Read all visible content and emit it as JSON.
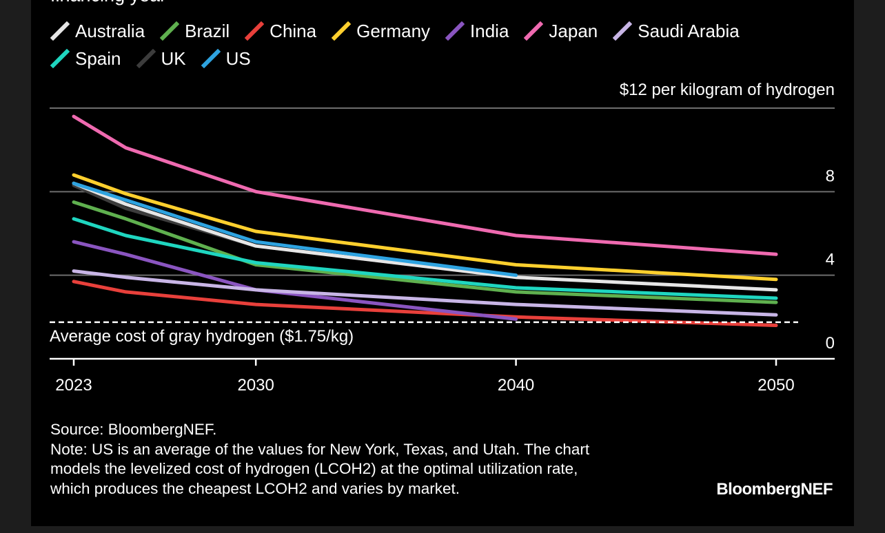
{
  "header": {
    "subtitle_partial": "financing year"
  },
  "chart_data": {
    "type": "line",
    "x": [
      2023,
      2025,
      2030,
      2040,
      2050
    ],
    "xticks": [
      "2023",
      "2030",
      "2040",
      "2050"
    ],
    "yticks": [
      "0",
      "4",
      "8"
    ],
    "top_label": "$12 per kilogram of hydrogen",
    "ylim": [
      0,
      12
    ],
    "grid": true,
    "legend_position": "top",
    "reference_line": {
      "value": 1.75,
      "label": "Average cost of gray hydrogen ($1.75/kg)"
    },
    "series": [
      {
        "name": "Australia",
        "color": "#e6e6e6",
        "values": [
          8.4,
          7.4,
          5.4,
          3.9,
          3.3
        ]
      },
      {
        "name": "Brazil",
        "color": "#5fb04f",
        "values": [
          7.5,
          6.7,
          4.5,
          3.2,
          2.7
        ]
      },
      {
        "name": "China",
        "color": "#e8403b",
        "values": [
          3.7,
          3.2,
          2.6,
          2.0,
          1.6
        ]
      },
      {
        "name": "Germany",
        "color": "#ffd02e",
        "values": [
          8.8,
          7.9,
          6.1,
          4.5,
          3.8
        ]
      },
      {
        "name": "India",
        "color": "#8a55c0",
        "values": [
          5.6,
          5.0,
          3.3,
          1.9,
          null
        ]
      },
      {
        "name": "Japan",
        "color": "#ef6ab0",
        "values": [
          11.6,
          10.1,
          8.0,
          5.9,
          5.0
        ]
      },
      {
        "name": "Saudi Arabia",
        "color": "#c8b5e6",
        "values": [
          4.2,
          3.9,
          3.3,
          2.6,
          2.1
        ]
      },
      {
        "name": "Spain",
        "color": "#1fd6c0",
        "values": [
          6.7,
          5.9,
          4.6,
          3.4,
          2.9
        ]
      },
      {
        "name": "UK",
        "color": "#3c3c3c",
        "values": [
          8.3,
          7.2,
          5.4,
          3.9,
          null
        ]
      },
      {
        "name": "US",
        "color": "#2ea3e0",
        "values": [
          8.4,
          7.6,
          5.6,
          4.0,
          null
        ]
      }
    ]
  },
  "footer": {
    "source": "Source: BloombergNEF.",
    "note": "Note: US is an average of the values for New York, Texas, and Utah. The chart\nmodels the levelized cost of hydrogen (LCOH2) at the optimal utilization rate,\nwhich produces the cheapest LCOH2 and varies by market.",
    "brand": "BloombergNEF"
  }
}
